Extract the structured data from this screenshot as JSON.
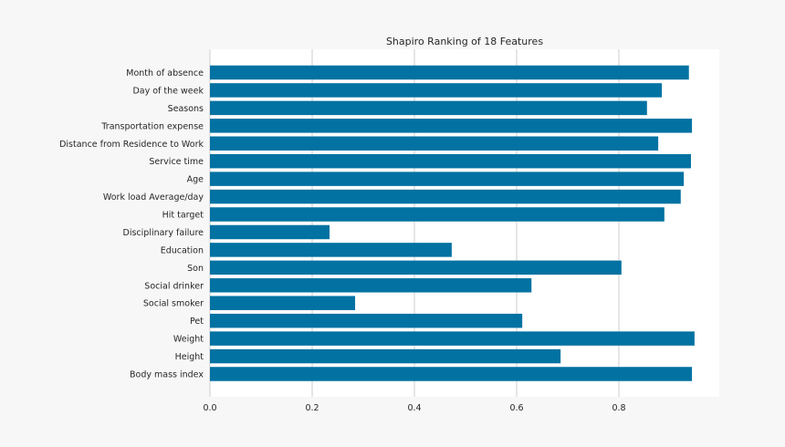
{
  "chart_data": {
    "type": "bar",
    "orientation": "horizontal",
    "title": "Shapiro Ranking of 18 Features",
    "xlabel": "",
    "ylabel": "",
    "xlim": [
      0,
      0.995
    ],
    "xticks": [
      "0.0",
      "0.2",
      "0.4",
      "0.6",
      "0.8"
    ],
    "grid": true,
    "bar_color": "#0272a2",
    "categories": [
      "Month of absence",
      "Day of the week",
      "Seasons",
      "Transportation expense",
      "Distance from Residence to Work",
      "Service time",
      "Age",
      "Work load Average/day ",
      "Hit target",
      "Disciplinary failure",
      "Education",
      "Son",
      "Social drinker",
      "Social smoker",
      "Pet",
      "Weight",
      "Height",
      "Body mass index"
    ],
    "values": [
      0.937,
      0.884,
      0.855,
      0.943,
      0.877,
      0.941,
      0.927,
      0.921,
      0.889,
      0.234,
      0.473,
      0.805,
      0.629,
      0.284,
      0.611,
      0.948,
      0.686,
      0.943
    ]
  }
}
